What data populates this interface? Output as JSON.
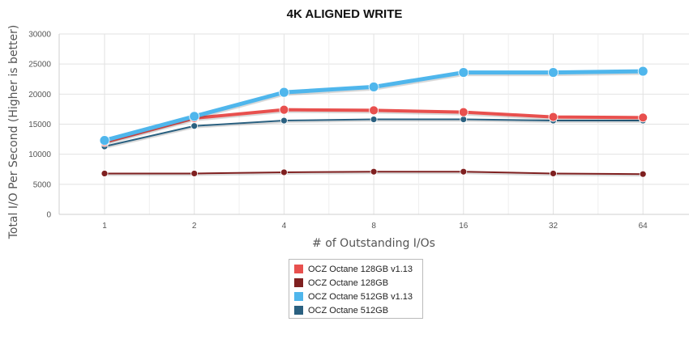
{
  "chart_data": {
    "type": "line",
    "title": "4K ALIGNED WRITE",
    "xlabel": "# of Outstanding I/Os",
    "ylabel": "Total I/O Per Second (Higher is better)",
    "categories": [
      "1",
      "2",
      "4",
      "8",
      "16",
      "32",
      "64"
    ],
    "ylim": [
      0,
      30000
    ],
    "yticks": [
      0,
      5000,
      10000,
      15000,
      20000,
      25000,
      30000
    ],
    "grid": true,
    "legend_position": "bottom",
    "series": [
      {
        "name": "OCZ Octane 128GB v1.13",
        "color": "#e8504e",
        "values": [
          12000,
          16000,
          17400,
          17300,
          17000,
          16200,
          16100
        ]
      },
      {
        "name": "OCZ Octane 128GB",
        "color": "#7f2020",
        "values": [
          6800,
          6800,
          7000,
          7100,
          7100,
          6800,
          6700
        ]
      },
      {
        "name": "OCZ Octane 512GB v1.13",
        "color": "#4fb6ec",
        "values": [
          12300,
          16300,
          20300,
          21200,
          23600,
          23600,
          23800
        ]
      },
      {
        "name": "OCZ Octane 512GB",
        "color": "#2a6080",
        "values": [
          11300,
          14700,
          15600,
          15800,
          15800,
          15600,
          15600
        ]
      }
    ]
  }
}
